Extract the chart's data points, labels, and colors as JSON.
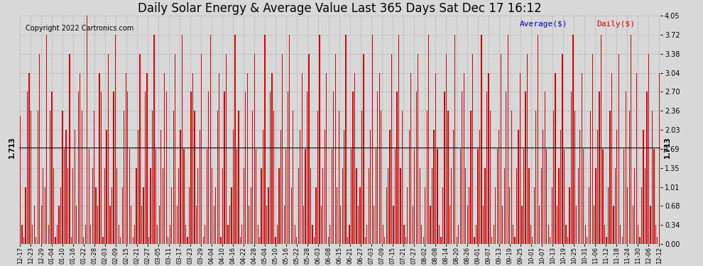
{
  "title": "Daily Solar Energy & Average Value Last 365 Days Sat Dec 17 16:12",
  "copyright": "Copyright 2022 Cartronics.com",
  "average_label": "Average($)",
  "daily_label": "Daily($)",
  "average_value": 1.713,
  "ylim": [
    0.0,
    4.05
  ],
  "yticks": [
    0.0,
    0.34,
    0.68,
    1.01,
    1.35,
    1.69,
    2.03,
    2.36,
    2.7,
    3.04,
    3.38,
    3.72,
    4.05
  ],
  "bar_color": "#dd0000",
  "average_line_color": "#000000",
  "grid_color": "#aaaaaa",
  "title_color": "#000000",
  "bg_color": "#d8d8d8",
  "title_fontsize": 12,
  "copyright_fontsize": 7,
  "tick_fontsize": 7,
  "xtick_labels": [
    "12-17",
    "12-23",
    "12-29",
    "01-04",
    "01-10",
    "01-16",
    "01-22",
    "01-28",
    "02-03",
    "02-09",
    "02-15",
    "02-21",
    "02-27",
    "03-05",
    "03-11",
    "03-17",
    "03-23",
    "03-29",
    "04-04",
    "04-10",
    "04-16",
    "04-22",
    "04-28",
    "05-04",
    "05-10",
    "05-16",
    "05-22",
    "05-28",
    "06-03",
    "06-08",
    "06-15",
    "06-21",
    "06-27",
    "07-03",
    "07-09",
    "07-15",
    "07-21",
    "07-27",
    "08-02",
    "08-08",
    "08-14",
    "08-20",
    "08-26",
    "09-01",
    "09-07",
    "09-13",
    "09-19",
    "09-25",
    "10-01",
    "10-07",
    "10-13",
    "10-19",
    "10-25",
    "10-31",
    "11-06",
    "11-12",
    "11-18",
    "11-24",
    "11-30",
    "12-06",
    "12-12"
  ],
  "average_label_color": "#0000bb",
  "daily_label_color": "#dd0000",
  "daily_values": [
    2.28,
    0.34,
    0.12,
    1.01,
    2.7,
    3.04,
    2.36,
    0.34,
    0.68,
    0.12,
    2.36,
    3.38,
    0.68,
    1.35,
    1.01,
    3.72,
    0.34,
    2.36,
    2.7,
    1.35,
    0.12,
    0.34,
    0.68,
    1.01,
    2.36,
    1.69,
    2.03,
    1.35,
    3.38,
    0.12,
    1.35,
    2.03,
    0.68,
    2.7,
    3.04,
    2.36,
    0.12,
    0.34,
    4.05,
    1.69,
    0.34,
    1.35,
    2.36,
    1.01,
    0.68,
    3.04,
    2.7,
    0.12,
    1.35,
    2.03,
    3.38,
    0.68,
    1.01,
    2.7,
    3.72,
    1.35,
    0.34,
    0.12,
    1.01,
    2.36,
    3.04,
    2.7,
    1.69,
    0.68,
    0.12,
    0.34,
    1.35,
    2.03,
    3.38,
    0.68,
    1.01,
    2.7,
    3.04,
    0.12,
    1.35,
    2.36,
    3.72,
    1.69,
    0.34,
    0.68,
    2.03,
    1.35,
    3.04,
    2.7,
    0.12,
    0.34,
    1.01,
    2.36,
    3.38,
    0.68,
    1.35,
    2.03,
    3.72,
    1.69,
    0.34,
    0.12,
    1.01,
    2.7,
    3.04,
    2.36,
    0.68,
    1.35,
    2.03,
    3.38,
    0.12,
    0.34,
    1.69,
    2.7,
    3.72,
    1.35,
    0.68,
    1.01,
    2.36,
    3.04,
    0.12,
    1.35,
    2.7,
    3.38,
    0.34,
    0.68,
    1.01,
    2.03,
    3.72,
    1.69,
    2.36,
    0.12,
    0.34,
    1.35,
    2.7,
    3.04,
    0.68,
    1.01,
    2.36,
    3.38,
    1.69,
    0.34,
    0.12,
    1.35,
    2.03,
    3.72,
    0.68,
    1.01,
    2.7,
    3.04,
    2.36,
    0.12,
    0.34,
    1.35,
    2.03,
    3.38,
    0.68,
    1.69,
    2.7,
    3.72,
    1.01,
    2.36,
    0.34,
    0.12,
    1.35,
    2.03,
    3.04,
    0.68,
    1.69,
    2.7,
    3.38,
    1.35,
    0.34,
    0.12,
    1.01,
    2.36,
    3.72,
    0.68,
    1.35,
    2.03,
    3.04,
    0.12,
    0.34,
    1.69,
    2.7,
    3.38,
    1.01,
    2.36,
    0.68,
    1.35,
    2.03,
    3.72,
    0.12,
    0.34,
    1.69,
    2.7,
    3.04,
    1.35,
    0.68,
    1.01,
    2.36,
    3.38,
    0.12,
    0.34,
    1.35,
    2.03,
    3.72,
    0.68,
    1.69,
    2.7,
    3.04,
    2.36,
    0.34,
    0.12,
    1.01,
    1.35,
    2.03,
    3.38,
    0.68,
    1.69,
    2.7,
    3.72,
    1.35,
    2.36,
    0.34,
    0.12,
    1.01,
    2.03,
    3.04,
    0.68,
    1.69,
    2.7,
    3.38,
    1.35,
    0.34,
    0.12,
    1.01,
    2.36,
    3.72,
    0.68,
    1.35,
    2.03,
    3.04,
    1.69,
    0.34,
    0.12,
    1.01,
    2.7,
    3.38,
    2.36,
    0.68,
    1.35,
    2.03,
    3.72,
    0.12,
    0.34,
    1.69,
    2.7,
    3.04,
    1.35,
    0.68,
    1.01,
    2.36,
    3.38,
    0.12,
    0.34,
    1.69,
    2.03,
    3.72,
    0.68,
    1.35,
    2.7,
    3.04,
    2.36,
    0.12,
    0.34,
    1.01,
    1.69,
    2.03,
    3.38,
    0.68,
    1.35,
    2.7,
    3.72,
    1.01,
    2.36,
    0.34,
    0.12,
    1.35,
    2.03,
    3.04,
    0.68,
    1.69,
    2.7,
    3.38,
    1.35,
    0.34,
    0.12,
    1.01,
    2.36,
    3.72,
    0.68,
    1.35,
    2.03,
    2.7,
    1.69,
    0.34,
    0.12,
    1.01,
    2.36,
    3.04,
    0.68,
    1.35,
    2.03,
    3.38,
    1.69,
    0.34,
    0.12,
    1.01,
    2.7,
    3.72,
    2.36,
    0.68,
    1.35,
    2.03,
    3.04,
    1.69,
    0.34,
    0.12,
    1.01,
    2.36,
    3.38,
    0.68,
    1.35,
    2.03,
    2.7,
    3.72,
    1.69,
    0.34,
    0.12,
    1.01,
    2.36,
    3.04,
    0.68,
    1.35,
    2.03,
    3.38,
    0.34,
    0.12,
    1.69,
    2.7,
    1.01,
    2.36,
    3.72,
    0.68,
    1.35,
    3.04,
    0.34,
    0.12,
    1.01,
    2.03,
    1.35,
    2.7,
    3.38,
    0.68,
    2.36,
    1.69,
    0.34,
    0.12,
    3.04
  ]
}
